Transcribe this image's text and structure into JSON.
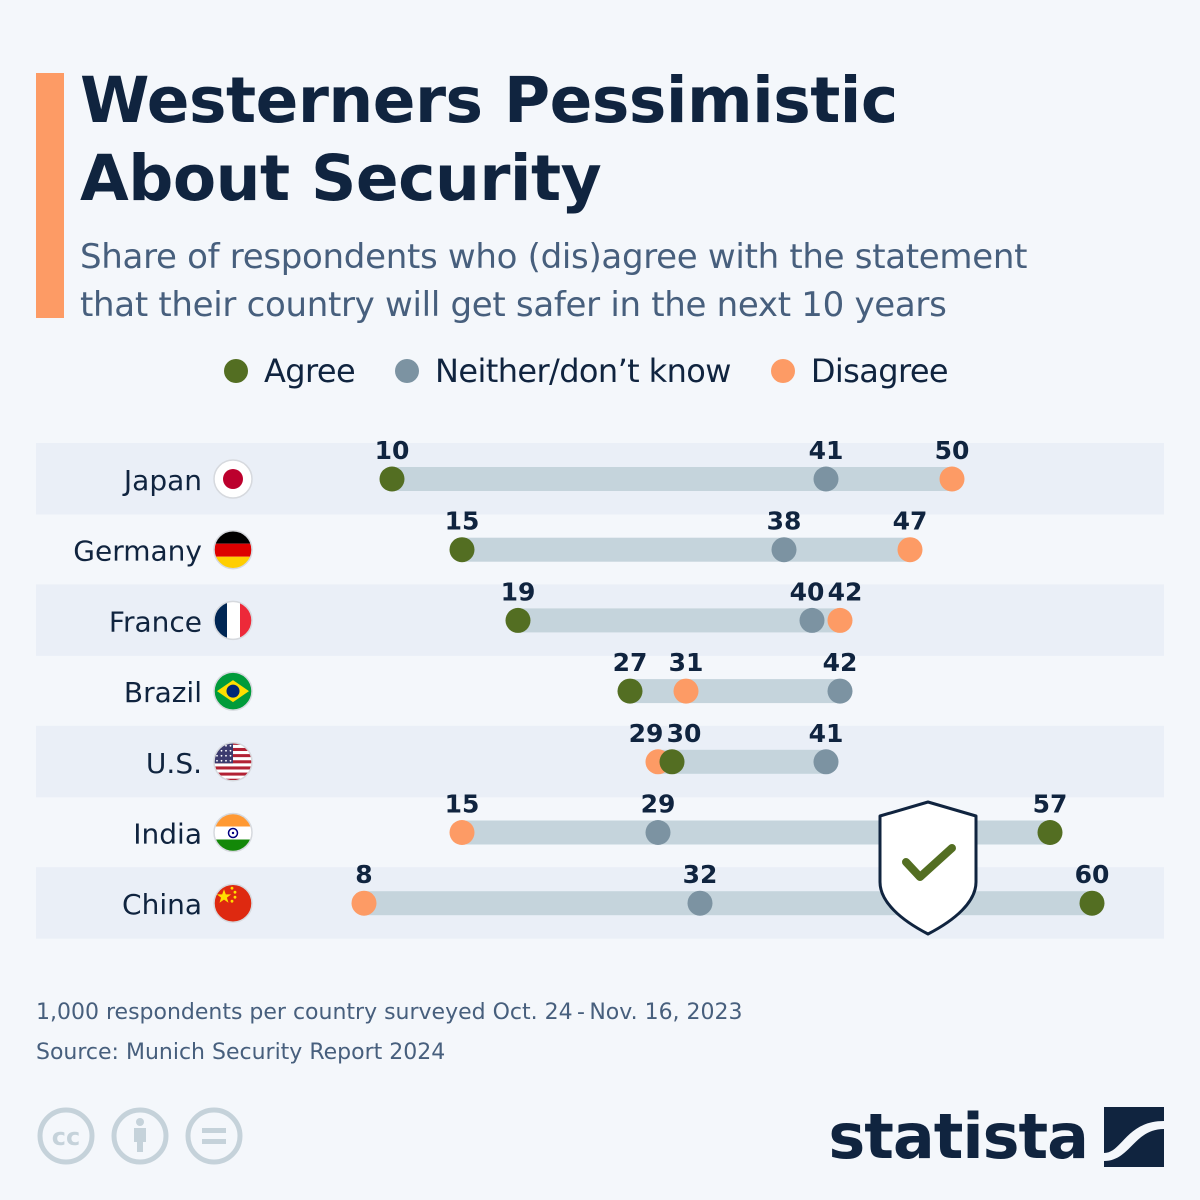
{
  "header": {
    "title_line1": "Westerners Pessimistic",
    "title_line2": "About Security",
    "subtitle_line1": "Share of respondents who (dis)agree with the statement",
    "subtitle_line2": "that their country will get safer in the next 10 years"
  },
  "legend": [
    {
      "label": "Agree",
      "color": "#536e22"
    },
    {
      "label": "Neither/don’t know",
      "color": "#7c93a2"
    },
    {
      "label": "Disagree",
      "color": "#fd9b65"
    }
  ],
  "chart_data": {
    "type": "dumbbell",
    "title": "Westerners Pessimistic About Security",
    "subtitle": "Share of respondents who (dis)agree with the statement that their country will get safer in the next 10 years",
    "unit": "%",
    "xlim": [
      0,
      65
    ],
    "grid": false,
    "legend_position": "top-center",
    "categories": [
      "Japan",
      "Germany",
      "France",
      "Brazil",
      "U.S.",
      "India",
      "China"
    ],
    "flags": [
      "japan-flag",
      "germany-flag",
      "france-flag",
      "brazil-flag",
      "us-flag",
      "india-flag",
      "china-flag"
    ],
    "series": [
      {
        "name": "Agree",
        "color": "#536e22",
        "values": [
          10,
          15,
          19,
          27,
          30,
          57,
          60
        ]
      },
      {
        "name": "Neither/don’t know",
        "color": "#7c93a2",
        "values": [
          41,
          38,
          40,
          42,
          41,
          29,
          32
        ]
      },
      {
        "name": "Disagree",
        "color": "#fd9b65",
        "values": [
          50,
          47,
          42,
          31,
          29,
          15,
          8
        ]
      }
    ],
    "annotation_icon": "shield-check-icon"
  },
  "colors": {
    "accent": "#fd9b65",
    "title": "#10243f",
    "subtitle": "#475f7d",
    "bar": "#c5d4dc",
    "band": "#eaeff7",
    "check": "#536e22"
  },
  "footer": {
    "note": "1,000 respondents per country surveyed Oct. 24 - Nov. 16, 2023",
    "source": "Source: Munich Security Report 2024",
    "brand": "statista",
    "license_icons": [
      "cc-icon",
      "attribution-icon",
      "no-derivatives-icon"
    ]
  }
}
